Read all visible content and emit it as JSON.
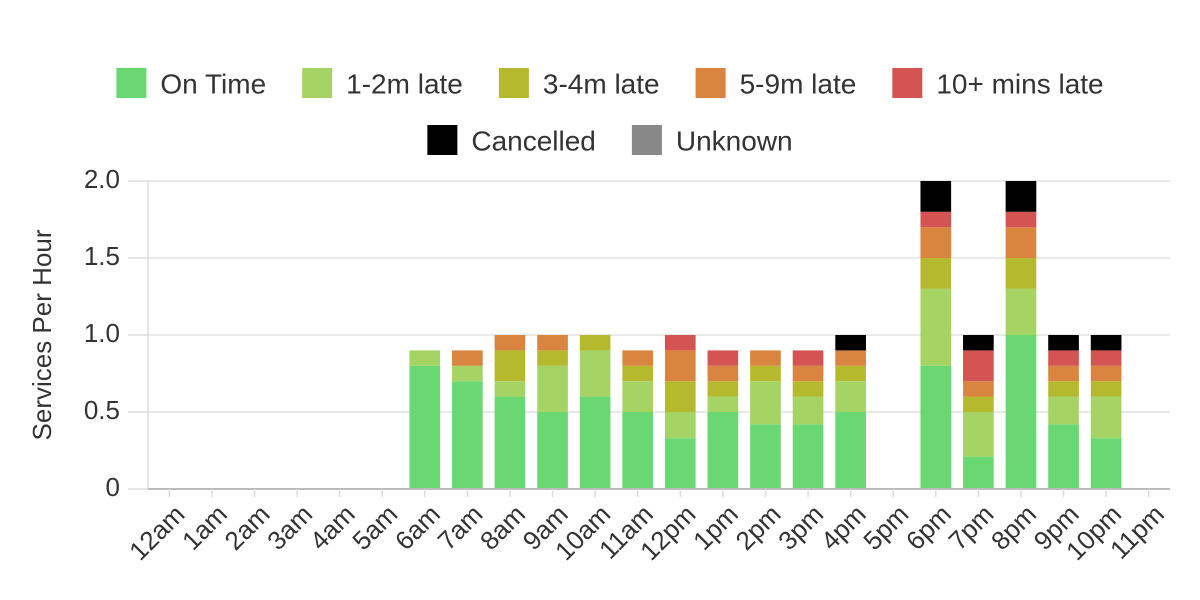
{
  "chart_data": {
    "type": "stacked_bar",
    "y_label": "Services Per Hour",
    "categories": [
      "12am",
      "1am",
      "2am",
      "3am",
      "4am",
      "5am",
      "6am",
      "7am",
      "8am",
      "9am",
      "10am",
      "11am",
      "12pm",
      "1pm",
      "2pm",
      "3pm",
      "4pm",
      "5pm",
      "6pm",
      "7pm",
      "8pm",
      "9pm",
      "10pm",
      "11pm"
    ],
    "series": [
      {
        "name": "On Time",
        "color": "#6ad872",
        "values": [
          0,
          0,
          0,
          0,
          0,
          0,
          0.8,
          0.7,
          0.6,
          0.5,
          0.6,
          0.5,
          0.33,
          0.5,
          0.42,
          0.42,
          0.5,
          0,
          0.8,
          0.21,
          1.0,
          0.42,
          0.33,
          0
        ]
      },
      {
        "name": "1-2m late",
        "color": "#a5d465",
        "values": [
          0,
          0,
          0,
          0,
          0,
          0,
          0.1,
          0.1,
          0.1,
          0.3,
          0.3,
          0.2,
          0.17,
          0.1,
          0.28,
          0.18,
          0.2,
          0,
          0.5,
          0.29,
          0.3,
          0.18,
          0.27,
          0
        ]
      },
      {
        "name": "3-4m late",
        "color": "#b5b92d",
        "values": [
          0,
          0,
          0,
          0,
          0,
          0,
          0,
          0,
          0.2,
          0.1,
          0.1,
          0.1,
          0.2,
          0.1,
          0.1,
          0.1,
          0.1,
          0,
          0.2,
          0.1,
          0.2,
          0.1,
          0.1,
          0
        ]
      },
      {
        "name": "5-9m late",
        "color": "#d9843f",
        "values": [
          0,
          0,
          0,
          0,
          0,
          0,
          0,
          0.1,
          0.1,
          0.1,
          0,
          0.1,
          0.2,
          0.1,
          0.1,
          0.1,
          0.1,
          0,
          0.2,
          0.1,
          0.2,
          0.1,
          0.1,
          0
        ]
      },
      {
        "name": "10+ mins late",
        "color": "#d45454",
        "values": [
          0,
          0,
          0,
          0,
          0,
          0,
          0,
          0,
          0,
          0,
          0,
          0,
          0.1,
          0.1,
          0,
          0.1,
          0,
          0,
          0.1,
          0.2,
          0.1,
          0.1,
          0.1,
          0
        ]
      },
      {
        "name": "Cancelled",
        "color": "#000000",
        "values": [
          0,
          0,
          0,
          0,
          0,
          0,
          0,
          0,
          0,
          0,
          0,
          0,
          0,
          0,
          0,
          0,
          0.1,
          0,
          0.2,
          0.1,
          0.2,
          0.1,
          0.1,
          0
        ]
      },
      {
        "name": "Unknown",
        "color": "#888888",
        "values": [
          0,
          0,
          0,
          0,
          0,
          0,
          0,
          0,
          0,
          0,
          0,
          0,
          0,
          0,
          0,
          0,
          0,
          0,
          0,
          0,
          0,
          0,
          0,
          0
        ]
      }
    ],
    "ylim": [
      0,
      2
    ],
    "yticks": [
      0,
      0.5,
      {
        "value": 1,
        "label": "1.0"
      },
      1.5,
      {
        "value": 2,
        "label": "2.0"
      }
    ],
    "grid": true,
    "legend": "top"
  }
}
